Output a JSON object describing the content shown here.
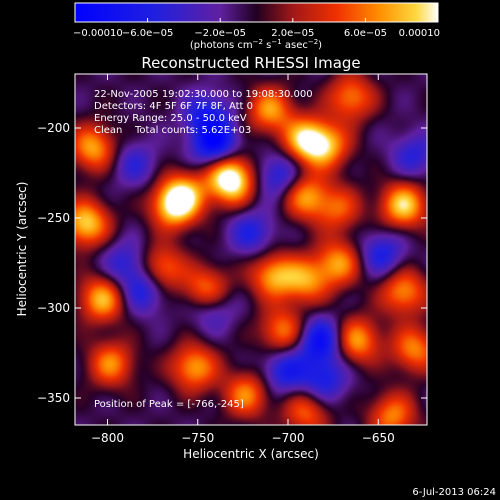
{
  "chart_data": {
    "type": "heatmap",
    "title": "Reconstructed RHESSI Image",
    "xlabel": "Heliocentric X (arcsec)",
    "ylabel": "Heliocentric Y (arcsec)",
    "xlim": [
      -818,
      -623
    ],
    "ylim": [
      -365,
      -170
    ],
    "x_ticks": [
      -800,
      -750,
      -700,
      -650
    ],
    "y_ticks": [
      -350,
      -300,
      -250,
      -200
    ],
    "x_tick_labels": [
      "−800",
      "−750",
      "−700",
      "−650"
    ],
    "y_tick_labels": [
      "−350",
      "−300",
      "−250",
      "−200"
    ],
    "colorbar": {
      "min": -0.0001,
      "max": 0.0001,
      "tick_values": [
        -0.0001,
        -6e-05,
        -2e-05,
        2e-05,
        6e-05,
        0.0001
      ],
      "tick_labels": [
        "−0.00010",
        "−6.0e−05",
        "−2.0e−05",
        "2.0e−05",
        "6.0e−05",
        "0.00010"
      ],
      "unit_main": "(photons cm",
      "unit_sup1": "−2",
      "unit_mid": " s",
      "unit_sup2": "−1",
      "unit_mid2": " asec",
      "unit_sup3": "−2",
      "unit_end": ")"
    },
    "annotations": {
      "time_range": "22-Nov-2005 19:02:30.000 to 19:08:30.000",
      "detectors": "Detectors: 4F 5F 6F 7F 8F, Att 0",
      "energy": "Energy Range: 25.0 - 50.0 keV",
      "algorithm": "Clean",
      "total_counts": "Total counts: 5.62E+03",
      "peak": "Position of Peak = [-766,-245]"
    },
    "peak_position": [
      -766,
      -245
    ],
    "blobs": [
      {
        "x": -763,
        "y": -243,
        "amp": 1.0
      },
      {
        "x": -757,
        "y": -236,
        "amp": 0.6
      },
      {
        "x": -733,
        "y": -225,
        "amp": 0.85
      },
      {
        "x": -731,
        "y": -232,
        "amp": 0.6
      },
      {
        "x": -690,
        "y": -207,
        "amp": 0.95
      },
      {
        "x": -678,
        "y": -210,
        "amp": 0.7
      },
      {
        "x": -690,
        "y": -238,
        "amp": 0.75
      },
      {
        "x": -672,
        "y": -245,
        "amp": 0.55
      },
      {
        "x": -710,
        "y": -190,
        "amp": 0.75
      },
      {
        "x": -665,
        "y": -183,
        "amp": 0.7
      },
      {
        "x": -636,
        "y": -243,
        "amp": 0.95
      },
      {
        "x": -812,
        "y": -253,
        "amp": 0.95
      },
      {
        "x": -808,
        "y": -211,
        "amp": 0.8
      },
      {
        "x": -803,
        "y": -295,
        "amp": 0.85
      },
      {
        "x": -798,
        "y": -331,
        "amp": 0.7
      },
      {
        "x": -770,
        "y": -278,
        "amp": 0.7
      },
      {
        "x": -745,
        "y": -290,
        "amp": 0.75
      },
      {
        "x": -752,
        "y": -333,
        "amp": 0.8
      },
      {
        "x": -723,
        "y": -348,
        "amp": 0.7
      },
      {
        "x": -708,
        "y": -282,
        "amp": 0.8
      },
      {
        "x": -690,
        "y": -285,
        "amp": 0.7
      },
      {
        "x": -672,
        "y": -275,
        "amp": 0.75
      },
      {
        "x": -703,
        "y": -313,
        "amp": 0.7
      },
      {
        "x": -662,
        "y": -318,
        "amp": 0.8
      },
      {
        "x": -636,
        "y": -291,
        "amp": 0.75
      },
      {
        "x": -630,
        "y": -323,
        "amp": 0.7
      },
      {
        "x": -642,
        "y": -360,
        "amp": 0.7
      },
      {
        "x": -690,
        "y": -358,
        "amp": 0.6
      },
      {
        "x": -740,
        "y": -210,
        "amp": -0.9
      },
      {
        "x": -745,
        "y": -193,
        "amp": -0.6
      },
      {
        "x": -705,
        "y": -226,
        "amp": -0.55
      },
      {
        "x": -780,
        "y": -290,
        "amp": -0.55
      },
      {
        "x": -790,
        "y": -275,
        "amp": -0.45
      },
      {
        "x": -720,
        "y": -258,
        "amp": -0.5
      },
      {
        "x": -682,
        "y": -318,
        "amp": -0.8
      },
      {
        "x": -680,
        "y": -340,
        "amp": -0.55
      },
      {
        "x": -702,
        "y": -335,
        "amp": -0.6
      },
      {
        "x": -648,
        "y": -270,
        "amp": -0.55
      },
      {
        "x": -742,
        "y": -300,
        "amp": -0.45
      },
      {
        "x": -785,
        "y": -220,
        "amp": -0.4
      },
      {
        "x": -630,
        "y": -215,
        "amp": -0.45
      }
    ]
  },
  "footer": {
    "timestamp": "6-Jul-2013 06:24"
  }
}
